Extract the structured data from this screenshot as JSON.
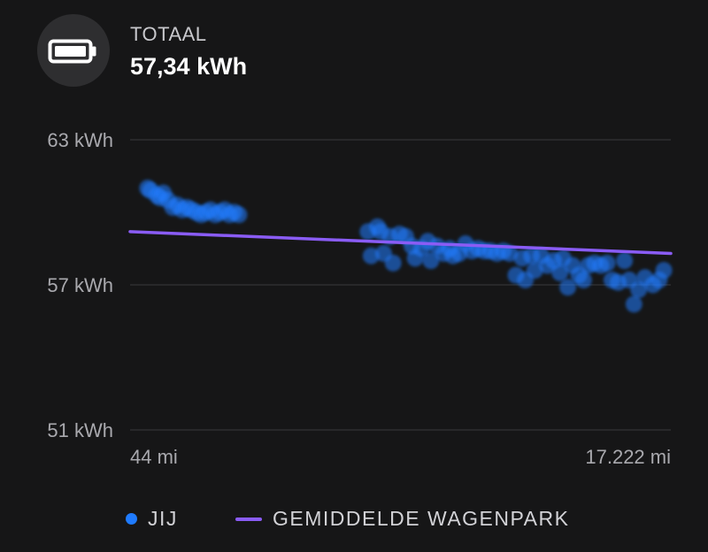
{
  "header": {
    "icon": "battery-icon",
    "label": "TOTAAL",
    "value": "57,34 kWh"
  },
  "colors": {
    "background": "#161617",
    "points": "#1f7bff",
    "fleet_line": "#8a5cf5",
    "grid": "#3a3a3c",
    "tick_text": "#a9a9ae"
  },
  "legend": {
    "you": "JIJ",
    "fleet": "GEMIDDELDE WAGENPARK"
  },
  "chart_data": {
    "type": "scatter",
    "title": "",
    "xlabel": "",
    "ylabel": "",
    "xlim": [
      44,
      17222
    ],
    "ylim": [
      51,
      63
    ],
    "x_tick_labels": [
      "44 mi",
      "17.222 mi"
    ],
    "y_ticks": [
      {
        "value": 63,
        "label": "63 kWh"
      },
      {
        "value": 57,
        "label": "57 kWh"
      },
      {
        "value": 51,
        "label": "51 kWh"
      }
    ],
    "grid": true,
    "legend_position": "bottom",
    "series": [
      {
        "name": "JIJ",
        "type": "scatter",
        "points": [
          [
            600,
            61.0
          ],
          [
            700,
            60.9
          ],
          [
            900,
            60.7
          ],
          [
            1000,
            60.6
          ],
          [
            1100,
            60.8
          ],
          [
            1250,
            60.5
          ],
          [
            1400,
            60.2
          ],
          [
            1550,
            60.3
          ],
          [
            1700,
            60.1
          ],
          [
            1850,
            60.2
          ],
          [
            2000,
            60.1
          ],
          [
            2150,
            60.0
          ],
          [
            2300,
            59.9
          ],
          [
            2450,
            60.0
          ],
          [
            2600,
            60.1
          ],
          [
            2750,
            59.9
          ],
          [
            2900,
            60.0
          ],
          [
            3050,
            60.1
          ],
          [
            3200,
            59.9
          ],
          [
            3350,
            60.0
          ],
          [
            3500,
            59.9
          ],
          [
            7600,
            59.2
          ],
          [
            7700,
            58.2
          ],
          [
            7900,
            59.4
          ],
          [
            8000,
            59.2
          ],
          [
            8100,
            58.3
          ],
          [
            8300,
            59.0
          ],
          [
            8400,
            57.9
          ],
          [
            8600,
            59.1
          ],
          [
            8800,
            59.0
          ],
          [
            9000,
            58.6
          ],
          [
            9100,
            58.1
          ],
          [
            9300,
            58.5
          ],
          [
            9500,
            58.8
          ],
          [
            9600,
            58.0
          ],
          [
            9800,
            58.6
          ],
          [
            10000,
            58.3
          ],
          [
            10200,
            58.5
          ],
          [
            10300,
            58.2
          ],
          [
            10500,
            58.3
          ],
          [
            10700,
            58.7
          ],
          [
            10900,
            58.4
          ],
          [
            11100,
            58.5
          ],
          [
            11300,
            58.4
          ],
          [
            11500,
            58.4
          ],
          [
            11700,
            58.3
          ],
          [
            11900,
            58.4
          ],
          [
            12100,
            58.3
          ],
          [
            12300,
            57.4
          ],
          [
            12500,
            58.1
          ],
          [
            12600,
            57.2
          ],
          [
            12800,
            58.2
          ],
          [
            12900,
            57.6
          ],
          [
            13100,
            58.2
          ],
          [
            13300,
            57.8
          ],
          [
            13500,
            58.0
          ],
          [
            13700,
            57.5
          ],
          [
            13800,
            58.1
          ],
          [
            13950,
            56.9
          ],
          [
            14100,
            57.8
          ],
          [
            14300,
            57.4
          ],
          [
            14450,
            57.2
          ],
          [
            14600,
            57.8
          ],
          [
            14800,
            57.9
          ],
          [
            15000,
            57.8
          ],
          [
            15200,
            57.9
          ],
          [
            15350,
            57.2
          ],
          [
            15550,
            57.1
          ],
          [
            15750,
            58.0
          ],
          [
            15900,
            57.2
          ],
          [
            16050,
            56.2
          ],
          [
            16200,
            56.8
          ],
          [
            16400,
            57.3
          ],
          [
            16650,
            57.0
          ],
          [
            16850,
            57.2
          ],
          [
            17000,
            57.6
          ]
        ]
      },
      {
        "name": "GEMIDDELDE WAGENPARK",
        "type": "line",
        "points": [
          [
            44,
            59.2
          ],
          [
            17222,
            58.3
          ]
        ]
      }
    ]
  }
}
